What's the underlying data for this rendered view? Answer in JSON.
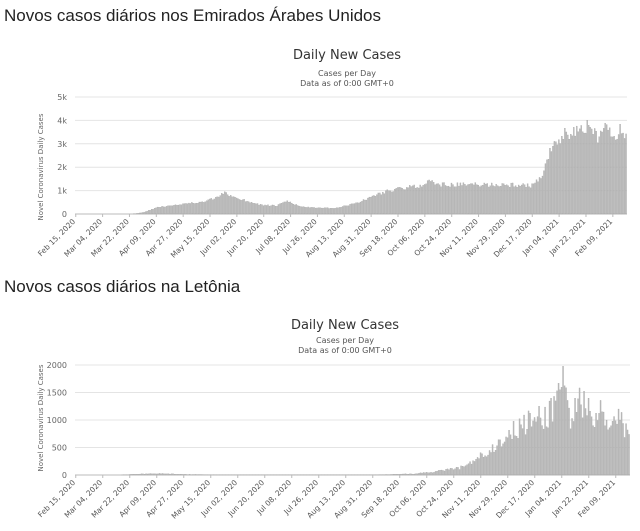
{
  "section_headings": [
    "Novos casos diários nos Emirados Árabes Unidos",
    "Novos casos diários na Letônia"
  ],
  "chart_data": [
    {
      "type": "bar",
      "title": "Daily New Cases",
      "subtitle_lines": [
        "Cases per Day",
        "Data as of 0:00 GMT+0"
      ],
      "ylabel": "Novel Coronavirus Daily Cases",
      "xlabel": "",
      "ylim": [
        0,
        5000
      ],
      "y_ticks": [
        0,
        1000,
        2000,
        3000,
        4000,
        5000
      ],
      "y_tick_labels": [
        "0",
        "1k",
        "2k",
        "3k",
        "4k",
        "5k"
      ],
      "x_tick_labels": [
        "Feb 15, 2020",
        "Mar 04, 2020",
        "Mar 22, 2020",
        "Apr 09, 2020",
        "Apr 27, 2020",
        "May 15, 2020",
        "Jun 02, 2020",
        "Jun 20, 2020",
        "Jul 08, 2020",
        "Jul 26, 2020",
        "Aug 13, 2020",
        "Aug 31, 2020",
        "Sep 18, 2020",
        "Oct 06, 2020",
        "Oct 24, 2020",
        "Nov 11, 2020",
        "Nov 29, 2020",
        "Dec 17, 2020",
        "Jan 04, 2021",
        "Jan 22, 2021",
        "Feb 09, 2021"
      ],
      "tick_interval_days": 18,
      "x_start": "Feb 15, 2020",
      "days_shown": 370,
      "bar_color": "#bdbdbd",
      "grid": true,
      "anchors": [
        [
          0,
          0
        ],
        [
          38,
          0
        ],
        [
          45,
          60
        ],
        [
          55,
          280
        ],
        [
          70,
          420
        ],
        [
          85,
          500
        ],
        [
          95,
          700
        ],
        [
          100,
          900
        ],
        [
          105,
          750
        ],
        [
          115,
          550
        ],
        [
          125,
          380
        ],
        [
          135,
          350
        ],
        [
          142,
          550
        ],
        [
          150,
          330
        ],
        [
          160,
          260
        ],
        [
          175,
          250
        ],
        [
          190,
          500
        ],
        [
          200,
          780
        ],
        [
          210,
          1000
        ],
        [
          230,
          1200
        ],
        [
          238,
          1400
        ],
        [
          245,
          1250
        ],
        [
          270,
          1250
        ],
        [
          290,
          1250
        ],
        [
          305,
          1200
        ],
        [
          313,
          1550
        ],
        [
          318,
          2700
        ],
        [
          323,
          3000
        ],
        [
          328,
          3400
        ],
        [
          340,
          3550
        ],
        [
          345,
          3900
        ],
        [
          350,
          3200
        ],
        [
          355,
          3900
        ],
        [
          360,
          3100
        ],
        [
          365,
          3600
        ],
        [
          369,
          3250
        ]
      ],
      "noise": 0.08
    },
    {
      "type": "bar",
      "title": "Daily New Cases",
      "subtitle_lines": [
        "Cases per Day",
        "Data as of 0:00 GMT+0"
      ],
      "ylabel": "Novel Coronavirus Daily Cases",
      "xlabel": "",
      "ylim": [
        0,
        2000
      ],
      "y_ticks": [
        0,
        500,
        1000,
        1500,
        2000
      ],
      "y_tick_labels": [
        "0",
        "500",
        "1000",
        "1500",
        "2000"
      ],
      "x_tick_labels": [
        "Feb 15, 2020",
        "Mar 04, 2020",
        "Mar 22, 2020",
        "Apr 09, 2020",
        "Apr 27, 2020",
        "May 15, 2020",
        "Jun 02, 2020",
        "Jun 20, 2020",
        "Jul 08, 2020",
        "Jul 26, 2020",
        "Aug 13, 2020",
        "Aug 31, 2020",
        "Sep 18, 2020",
        "Oct 06, 2020",
        "Oct 24, 2020",
        "Nov 11, 2020",
        "Nov 29, 2020",
        "Dec 17, 2020",
        "Jan 04, 2021",
        "Jan 22, 2021",
        "Feb 09, 2021"
      ],
      "tick_interval_days": 18,
      "x_start": "Feb 15, 2020",
      "days_shown": 370,
      "bar_color": "#bdbdbd",
      "grid": true,
      "anchors": [
        [
          0,
          0
        ],
        [
          30,
          0
        ],
        [
          40,
          15
        ],
        [
          55,
          25
        ],
        [
          75,
          10
        ],
        [
          100,
          5
        ],
        [
          150,
          3
        ],
        [
          200,
          5
        ],
        [
          225,
          20
        ],
        [
          240,
          60
        ],
        [
          255,
          120
        ],
        [
          265,
          250
        ],
        [
          275,
          420
        ],
        [
          285,
          650
        ],
        [
          295,
          850
        ],
        [
          305,
          1000
        ],
        [
          315,
          1100
        ],
        [
          320,
          1350
        ],
        [
          325,
          1850
        ],
        [
          330,
          900
        ],
        [
          335,
          1450
        ],
        [
          340,
          1300
        ],
        [
          345,
          850
        ],
        [
          350,
          1150
        ],
        [
          355,
          800
        ],
        [
          360,
          1050
        ],
        [
          365,
          900
        ],
        [
          369,
          700
        ]
      ],
      "noise": 0.25
    }
  ]
}
